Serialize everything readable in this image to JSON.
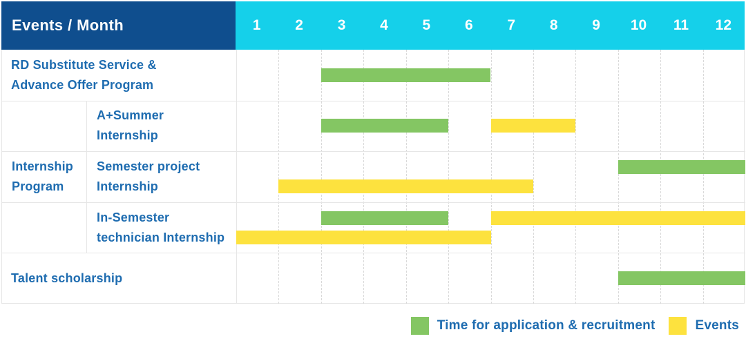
{
  "header": {
    "title": "Events / Month",
    "months": [
      "1",
      "2",
      "3",
      "4",
      "5",
      "6",
      "7",
      "8",
      "9",
      "10",
      "11",
      "12"
    ]
  },
  "chart_data": {
    "type": "bar",
    "subtype": "gantt-table",
    "title": "Events / Month",
    "x_categories": [
      "1",
      "2",
      "3",
      "4",
      "5",
      "6",
      "7",
      "8",
      "9",
      "10",
      "11",
      "12"
    ],
    "x_range": [
      1,
      12
    ],
    "grid": "dashed vertical month separators",
    "legend_position": "bottom-right",
    "groups": [
      {
        "label_lines": [
          "Internship",
          "Program"
        ],
        "row_indices": [
          1,
          2,
          3
        ]
      }
    ],
    "rows": [
      {
        "label_lines": [
          "RD Substitute Service &",
          "Advance Offer Program"
        ],
        "grouped": false,
        "bars": [
          {
            "series": "Time for application & recruitment",
            "start_month": 3,
            "end_month": 6,
            "lane": "center"
          }
        ]
      },
      {
        "label_lines": [
          "A+Summer",
          "Internship"
        ],
        "grouped": true,
        "bars": [
          {
            "series": "Time for application & recruitment",
            "start_month": 3,
            "end_month": 5,
            "lane": "center"
          },
          {
            "series": "Events",
            "start_month": 7,
            "end_month": 8,
            "lane": "center"
          }
        ]
      },
      {
        "label_lines": [
          "Semester project",
          "Internship"
        ],
        "grouped": true,
        "bars": [
          {
            "series": "Time for application & recruitment",
            "start_month": 10,
            "end_month": 12,
            "lane": "top"
          },
          {
            "series": "Events",
            "start_month": 2,
            "end_month": 7,
            "lane": "bottom"
          }
        ]
      },
      {
        "label_lines": [
          "In-Semester",
          "technician Internship"
        ],
        "grouped": true,
        "bars": [
          {
            "series": "Time for application & recruitment",
            "start_month": 3,
            "end_month": 5,
            "lane": "top"
          },
          {
            "series": "Events",
            "start_month": 7,
            "end_month": 12,
            "lane": "top"
          },
          {
            "series": "Events",
            "start_month": 1,
            "end_month": 6,
            "lane": "bottom"
          }
        ]
      },
      {
        "label_lines": [
          "Talent scholarship"
        ],
        "grouped": false,
        "bars": [
          {
            "series": "Time for application & recruitment",
            "start_month": 10,
            "end_month": 12,
            "lane": "center"
          }
        ]
      }
    ],
    "legend": [
      {
        "series": "Time for application & recruitment",
        "color": "#84c663"
      },
      {
        "series": "Events",
        "color": "#fde23e"
      }
    ]
  },
  "colors": {
    "header_navy": "#0f4e8e",
    "header_cyan": "#15d0ea",
    "bar_green": "#84c663",
    "bar_yellow": "#fde23e",
    "label_text": "#1e6cb0",
    "grid_dashed": "#d9d9d9",
    "row_border": "#e6e6e6"
  }
}
